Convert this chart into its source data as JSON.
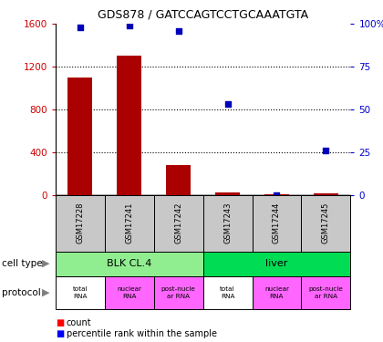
{
  "title": "GDS878 / GATCCAGTCCTGCAAATGTA",
  "samples": [
    "GSM17228",
    "GSM17241",
    "GSM17242",
    "GSM17243",
    "GSM17244",
    "GSM17245"
  ],
  "counts": [
    1100,
    1300,
    280,
    20,
    5,
    15
  ],
  "percentiles": [
    98,
    99,
    96,
    53,
    0,
    26
  ],
  "ylim_left": [
    0,
    1600
  ],
  "ylim_right": [
    0,
    100
  ],
  "yticks_left": [
    0,
    400,
    800,
    1200,
    1600
  ],
  "yticks_right": [
    0,
    25,
    50,
    75,
    100
  ],
  "yticklabels_right": [
    "0",
    "25",
    "50",
    "75",
    "100%"
  ],
  "cell_types": [
    {
      "label": "BLK CL.4",
      "span": [
        0,
        3
      ],
      "color": "#90EE90"
    },
    {
      "label": "liver",
      "span": [
        3,
        6
      ],
      "color": "#00DD55"
    }
  ],
  "proto_colors": [
    "#FFFFFF",
    "#FF66FF",
    "#FF66FF",
    "#FFFFFF",
    "#FF66FF",
    "#FF66FF"
  ],
  "proto_labels": [
    "total\nRNA",
    "nuclear\nRNA",
    "post-nucle\nar RNA",
    "total\nRNA",
    "nuclear\nRNA",
    "post-nucle\nar RNA"
  ],
  "bar_color": "#AA0000",
  "dot_color": "#0000BB",
  "legend_red_label": "count",
  "legend_blue_label": "percentile rank within the sample",
  "left_axis_color": "#CC0000",
  "right_axis_color": "#0000CC",
  "sample_box_color": "#C8C8C8",
  "title_fontsize": 9
}
